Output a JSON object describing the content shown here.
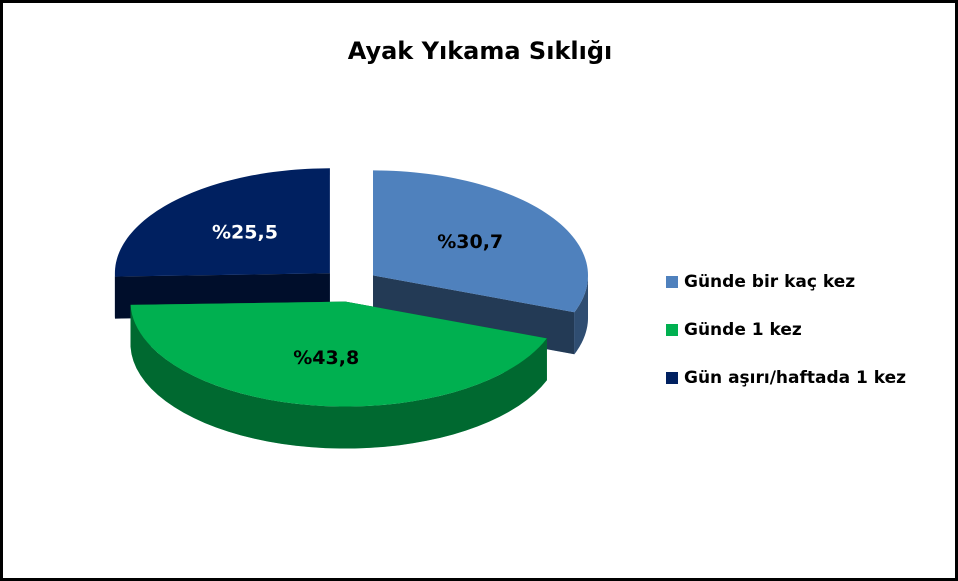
{
  "chart_data": {
    "type": "pie",
    "title": "Ayak Yıkama Sıklığı",
    "categories": [
      "Günde bir kaç kez",
      "Günde 1 kez",
      "Gün aşırı/haftada 1 kez"
    ],
    "values": [
      30.7,
      43.8,
      25.5
    ],
    "value_labels": [
      "%30,7",
      "%43,8",
      "%25,5"
    ],
    "colors": [
      "#4f81bd",
      "#00b050",
      "#002060"
    ],
    "legend": "right"
  }
}
